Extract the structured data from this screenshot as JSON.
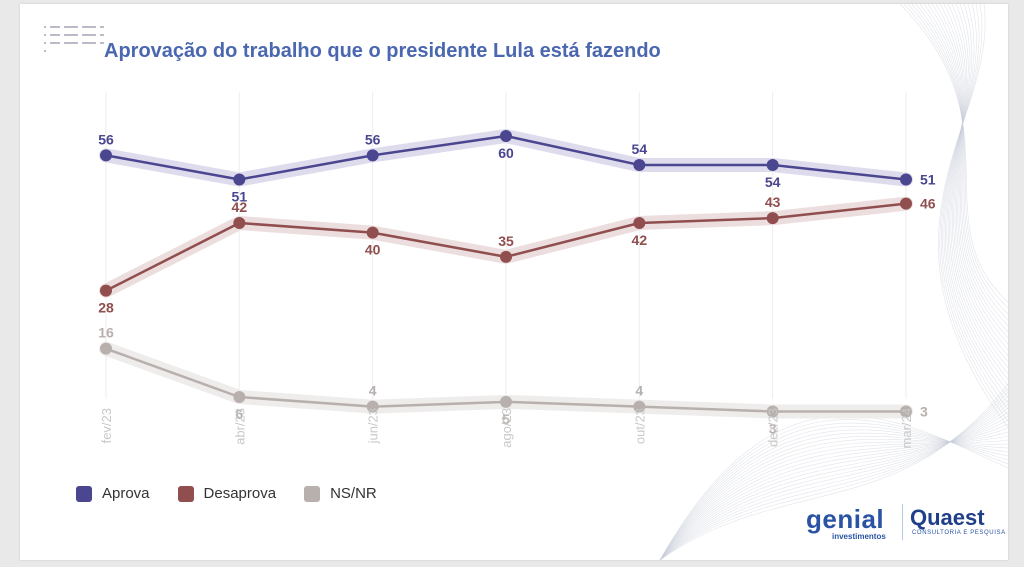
{
  "title": "Aprovação do trabalho que o presidente Lula está fazendo",
  "chart_data": {
    "type": "line",
    "title": "Aprovação do trabalho que o presidente Lula está fazendo",
    "categories": [
      "fev/23",
      "abr/23",
      "jun/23",
      "ago/23",
      "out/23",
      "dez/23",
      "mar/24"
    ],
    "ylim": [
      0,
      65
    ],
    "grid": true,
    "legend_position": "bottom-left",
    "series": [
      {
        "name": "Aprova",
        "color": "#4a468f",
        "band": "#dedcec",
        "values": [
          56,
          51,
          56,
          60,
          54,
          54,
          51
        ]
      },
      {
        "name": "Desaprova",
        "color": "#904e4e",
        "band": "#ecdede",
        "values": [
          28,
          42,
          40,
          35,
          42,
          43,
          46
        ]
      },
      {
        "name": "NS/NR",
        "color": "#b8b0ad",
        "band": "#efecec",
        "values": [
          16,
          6,
          4,
          5,
          4,
          3,
          3
        ]
      }
    ]
  },
  "legend": {
    "aprova": "Aprova",
    "desaprova": "Desaprova",
    "nsnr": "NS/NR"
  },
  "logos": {
    "genial": "genial",
    "genial_sub": "investimentos",
    "quaest": "Quaest",
    "quaest_sub": "CONSULTORIA E PESQUISA"
  }
}
